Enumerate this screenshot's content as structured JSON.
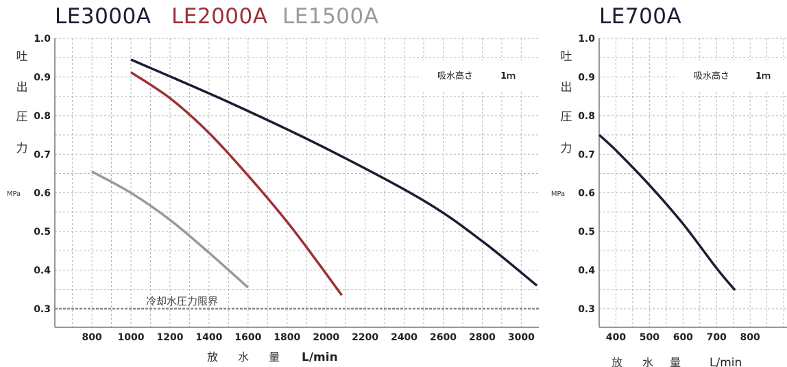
{
  "chart_data": [
    {
      "type": "line",
      "titles": [
        {
          "text": "LE3000A",
          "color": "#1a1d33"
        },
        {
          "text": "LE2000A",
          "color": "#9e3038"
        },
        {
          "text": "LE1500A",
          "color": "#999999"
        }
      ],
      "ylabel_chars": [
        "吐",
        "出",
        "圧",
        "力"
      ],
      "yunit": "MPa",
      "xlabel_chars": [
        "放",
        "水",
        "量"
      ],
      "xunit": "L/min",
      "xlim": [
        610,
        3090
      ],
      "ylim": [
        0.252,
        1.0
      ],
      "xticks": [
        800,
        1000,
        1200,
        1400,
        1600,
        1800,
        2000,
        2200,
        2400,
        2600,
        2800,
        3000
      ],
      "yticks": [
        0.3,
        0.4,
        0.5,
        0.6,
        0.7,
        0.8,
        0.9,
        1.0
      ],
      "ytick_labels": [
        "0.3",
        "0.4",
        "0.5",
        "0.6",
        "0.7",
        "0.8",
        "0.9",
        "1.0"
      ],
      "suction_label": "吸水高さ",
      "suction_value": "1ｍ",
      "limit_value": 0.3,
      "limit_label": "冷却水圧力限界",
      "series": [
        {
          "color": "#1a1d33",
          "x": [
            1000,
            1500,
            2000,
            2500,
            2800,
            3080
          ],
          "y": [
            0.945,
            0.835,
            0.715,
            0.58,
            0.475,
            0.36
          ]
        },
        {
          "color": "#9e3038",
          "x": [
            1000,
            1200,
            1400,
            1600,
            1800,
            1950,
            2080
          ],
          "y": [
            0.912,
            0.845,
            0.755,
            0.645,
            0.525,
            0.425,
            0.335
          ]
        },
        {
          "color": "#999999",
          "x": [
            800,
            1000,
            1200,
            1400,
            1600
          ],
          "y": [
            0.655,
            0.6,
            0.53,
            0.445,
            0.355
          ]
        }
      ]
    },
    {
      "type": "line",
      "titles": [
        {
          "text": "LE700A",
          "color": "#1a1d33"
        }
      ],
      "ylabel_chars": [
        "吐",
        "出",
        "圧",
        "力"
      ],
      "yunit": "MPa",
      "xlabel_chars": [
        "放",
        "水",
        "量"
      ],
      "xunit": "L/min",
      "xlim": [
        350,
        910
      ],
      "ylim": [
        0.252,
        1.0
      ],
      "xticks": [
        400,
        500,
        600,
        700,
        800
      ],
      "yticks": [
        0.3,
        0.4,
        0.5,
        0.6,
        0.7,
        0.8,
        0.9,
        1.0
      ],
      "ytick_labels": [
        "0.3",
        "0.4",
        "0.5",
        "0.6",
        "0.7",
        "0.8",
        "0.9",
        "1.0"
      ],
      "suction_label": "吸水高さ",
      "suction_value": "1ｍ",
      "series": [
        {
          "color": "#1a1d33",
          "x": [
            350,
            400,
            500,
            600,
            700,
            755
          ],
          "y": [
            0.75,
            0.71,
            0.62,
            0.52,
            0.405,
            0.348
          ]
        }
      ]
    }
  ]
}
